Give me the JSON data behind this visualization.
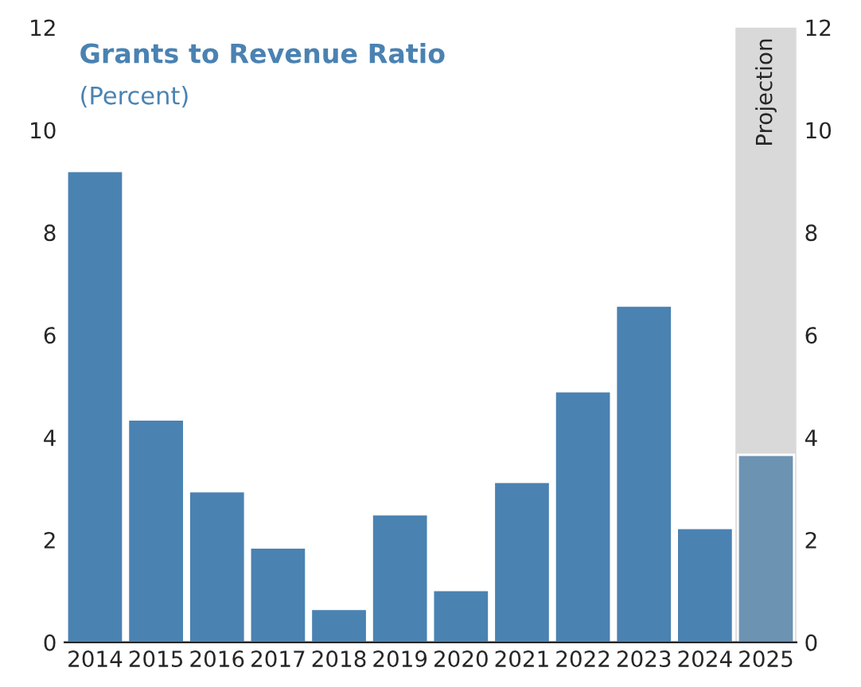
{
  "chart_data": {
    "type": "bar",
    "title": "Grants to Revenue Ratio",
    "subtitle": "(Percent)",
    "categories": [
      "2014",
      "2015",
      "2016",
      "2017",
      "2018",
      "2019",
      "2020",
      "2021",
      "2022",
      "2023",
      "2024",
      "2025"
    ],
    "values": [
      9.2,
      4.35,
      2.95,
      1.85,
      0.65,
      2.5,
      1.02,
      3.13,
      4.9,
      6.57,
      2.23,
      3.66
    ],
    "colors": [
      "#4a82b2",
      "#4a82b2",
      "#4a82b2",
      "#4a82b2",
      "#4a82b2",
      "#4a82b2",
      "#4a82b2",
      "#4a82b2",
      "#4a82b2",
      "#4a82b2",
      "#4a82b2",
      "#6d93b3"
    ],
    "ylim": [
      0,
      12
    ],
    "yticks": [
      0,
      2,
      4,
      6,
      8,
      10,
      12
    ],
    "y2lim": [
      0,
      12
    ],
    "y2ticks": [
      0,
      2,
      4,
      6,
      8,
      10,
      12
    ],
    "bands": [
      {
        "axis": "x",
        "from": "2025",
        "to": "2025",
        "label": "Projection",
        "color": "#d9d9d9"
      }
    ],
    "grid": false,
    "legend": false
  }
}
